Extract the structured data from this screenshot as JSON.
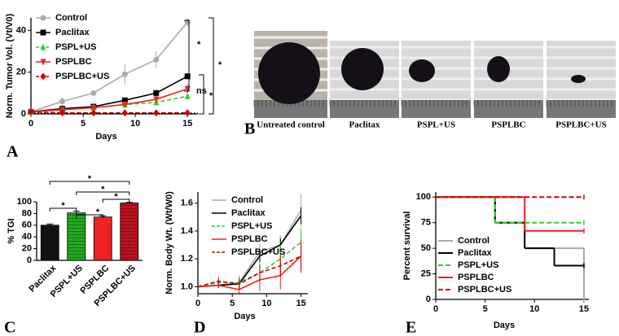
{
  "figure": {
    "panel_labels": [
      "A",
      "B",
      "C",
      "D",
      "E"
    ],
    "photo_captions": [
      "Untreated control",
      "Paclitax",
      "PSPL+US",
      "PSPLBC",
      "PSPLBC+US"
    ]
  },
  "chart_data": [
    {
      "type": "line",
      "xlabel": "Days",
      "ylabel": "Norm. Tumor Vol. (Vt/V0)",
      "x": [
        0,
        3,
        6,
        9,
        12,
        15
      ],
      "xlim": [
        0,
        16
      ],
      "xticks": [
        0,
        5,
        10,
        15
      ],
      "ylim": [
        0,
        46
      ],
      "yticks": [
        0,
        20,
        40
      ],
      "series": [
        {
          "name": "Control",
          "color": "#aaaaaa",
          "marker": "circle",
          "dash": false,
          "values": [
            1,
            6,
            10,
            19,
            26,
            44
          ],
          "errors": [
            0,
            2,
            1,
            5,
            4,
            2
          ]
        },
        {
          "name": "Paclitax",
          "color": "#000000",
          "marker": "square",
          "dash": false,
          "values": [
            1,
            2.5,
            3.5,
            6.5,
            10,
            18
          ],
          "errors": [
            0,
            0.5,
            0.5,
            0.8,
            1.5,
            0.5
          ]
        },
        {
          "name": "PSPL+US",
          "color": "#33cc33",
          "marker": "triangle",
          "dash": true,
          "values": [
            1,
            2,
            3,
            4.5,
            5.5,
            8.5
          ],
          "errors": [
            0,
            0.3,
            0.5,
            0.6,
            0.8,
            1.5
          ]
        },
        {
          "name": "PSPLBC",
          "color": "#ee2222",
          "marker": "down",
          "dash": false,
          "values": [
            1,
            2,
            3,
            4.5,
            7,
            12
          ],
          "errors": [
            0,
            0.3,
            0.5,
            0.5,
            1,
            2
          ]
        },
        {
          "name": "PSPLBC+US",
          "color": "#cc0000",
          "marker": "diamond",
          "dash": true,
          "values": [
            1,
            0.5,
            0.5,
            0.5,
            0.5,
            0.5
          ],
          "errors": [
            0,
            0.2,
            0.2,
            0.2,
            0.2,
            0.2
          ]
        }
      ],
      "annotations": [
        "*",
        "ns",
        "*",
        "*"
      ]
    },
    {
      "type": "bar",
      "ylabel": "% TGI",
      "categories": [
        "Paclitax",
        "PSPL+US",
        "PSPLBC",
        "PSPLBC+US"
      ],
      "values": [
        60,
        81,
        74,
        98
      ],
      "errors": [
        2,
        3,
        2,
        1
      ],
      "colors": [
        "#111111",
        "#22aa22",
        "#ee2222",
        "#bb1122"
      ],
      "ylim": [
        0,
        100
      ],
      "yticks": [
        0,
        20,
        40,
        60,
        80,
        100
      ],
      "annotations": [
        "*",
        "*",
        "*",
        "*",
        "*"
      ]
    },
    {
      "type": "line",
      "xlabel": "Days",
      "ylabel": "Norm. Body Wt. (Wt/W0)",
      "x": [
        0,
        3,
        6,
        9,
        12,
        15
      ],
      "xlim": [
        0,
        16
      ],
      "xticks": [
        0,
        5,
        10,
        15
      ],
      "ylim": [
        0.95,
        1.68
      ],
      "yticks": [
        {
          "value": 1,
          "label": "1.0"
        },
        1.2,
        1.4,
        1.6
      ],
      "series": [
        {
          "name": "Control",
          "color": "#aaaaaa",
          "marker": "none",
          "dash": false,
          "values": [
            1,
            1.01,
            1.03,
            1.25,
            1.3,
            1.55
          ],
          "errors": [
            0,
            0.02,
            0.05,
            0.06,
            0.07,
            0.12
          ]
        },
        {
          "name": "Paclitax",
          "color": "#000000",
          "marker": "none",
          "dash": false,
          "values": [
            1,
            1.01,
            1.02,
            1.22,
            1.3,
            1.51
          ],
          "errors": [
            0,
            0.02,
            0.03,
            0.05,
            0.05,
            0.06
          ]
        },
        {
          "name": "PSPL+US",
          "color": "#33cc33",
          "marker": "none",
          "dash": true,
          "values": [
            1,
            1.03,
            1.03,
            1.1,
            1.2,
            1.32
          ],
          "errors": [
            0,
            0.02,
            0.04,
            0.08,
            0.1,
            0.1
          ]
        },
        {
          "name": "PSPLBC",
          "color": "#ee2222",
          "marker": "none",
          "dash": false,
          "values": [
            1,
            1.01,
            0.98,
            1.05,
            1.08,
            1.22
          ],
          "errors": [
            0,
            0.02,
            0.04,
            0.08,
            0.1,
            0.12
          ]
        },
        {
          "name": "PSPLBC+US",
          "color": "#cc0000",
          "marker": "none",
          "dash": true,
          "values": [
            1,
            1.04,
            1.02,
            1.1,
            1.15,
            1.22
          ],
          "errors": [
            0,
            0.03,
            0.04,
            0.06,
            0.08,
            0.1
          ]
        }
      ]
    },
    {
      "type": "step",
      "xlabel": "Days",
      "ylabel": "Percent survival",
      "x": [
        0,
        3,
        6,
        9,
        12,
        15
      ],
      "xlim": [
        0,
        15.5
      ],
      "xticks": [
        0,
        5,
        10,
        15
      ],
      "ylim": [
        0,
        105
      ],
      "yticks": [
        0,
        25,
        50,
        75,
        100
      ],
      "series": [
        {
          "name": "Control",
          "color": "#aaaaaa",
          "dash": false,
          "values": [
            100,
            100,
            75,
            50,
            50,
            0
          ]
        },
        {
          "name": "Paclitax",
          "color": "#000000",
          "dash": false,
          "values": [
            100,
            100,
            75,
            50,
            33,
            33
          ]
        },
        {
          "name": "PSPL+US",
          "color": "#33cc33",
          "dash": true,
          "values": [
            100,
            100,
            75,
            75,
            75,
            75
          ]
        },
        {
          "name": "PSPLBC",
          "color": "#ee2222",
          "dash": false,
          "values": [
            100,
            100,
            100,
            67,
            67,
            67
          ]
        },
        {
          "name": "PSPLBC+US",
          "color": "#cc0000",
          "dash": true,
          "values": [
            100,
            100,
            100,
            100,
            100,
            100
          ]
        }
      ]
    }
  ]
}
